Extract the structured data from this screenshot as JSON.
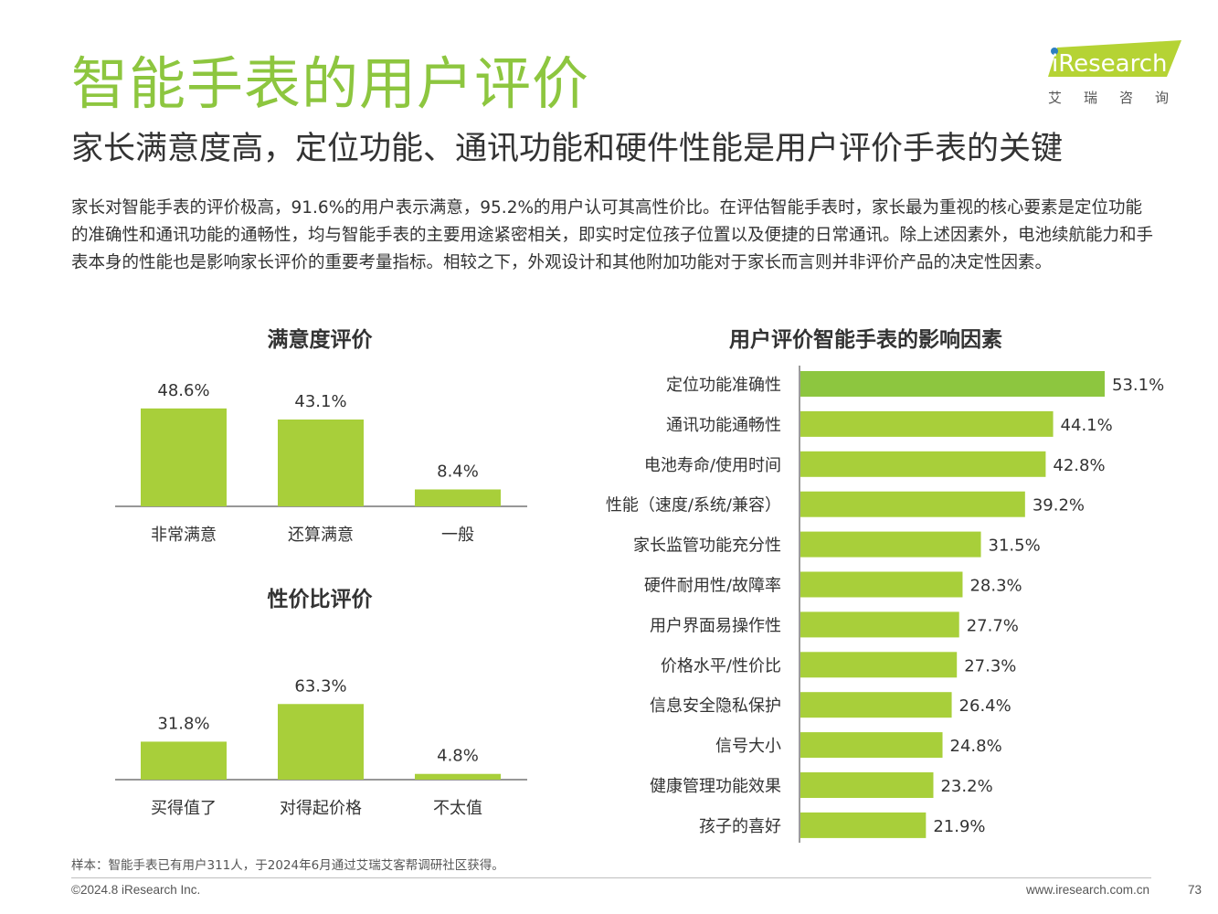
{
  "header": {
    "title": "智能手表的用户评价",
    "subtitle": "家长满意度高，定位功能、通讯功能和硬件性能是用户评价手表的关键",
    "body": "家长对智能手表的评价极高，91.6%的用户表示满意，95.2%的用户认可其高性价比。在评估智能手表时，家长最为重视的核心要素是定位功能的准确性和通讯功能的通畅性，均与智能手表的主要用途紧密相关，即实时定位孩子位置以及便捷的日常通讯。除上述因素外，电池续航能力和手表本身的性能也是影响家长评价的重要考量指标。相较之下，外观设计和其他附加功能对于家长而言则并非评价产品的决定性因素。"
  },
  "logo": {
    "brand": "iResearch",
    "cn": "艾瑞咨询"
  },
  "footer": {
    "note": "样本：智能手表已有用户311人，于2024年6月通过艾瑞艾客帮调研社区获得。",
    "copyright": "©2024.8 iResearch Inc.",
    "website": "www.iresearch.com.cn",
    "page": "73"
  },
  "colors": {
    "brand": "#8dc63f",
    "bar": "#a8cf3a",
    "bar_top": "#8dc63f",
    "axis": "#595959"
  },
  "chart_data": [
    {
      "type": "bar",
      "title": "满意度评价",
      "categories": [
        "非常满意",
        "还算满意",
        "一般"
      ],
      "values": [
        48.6,
        43.1,
        8.4
      ],
      "labels": [
        "48.6%",
        "43.1%",
        "8.4%"
      ],
      "unit": "%",
      "ylim": [
        0,
        70
      ]
    },
    {
      "type": "bar",
      "title": "性价比评价",
      "categories": [
        "买得值了",
        "对得起价格",
        "不太值"
      ],
      "values": [
        31.8,
        63.3,
        4.8
      ],
      "labels": [
        "31.8%",
        "63.3%",
        "4.8%"
      ],
      "unit": "%",
      "ylim": [
        0,
        70
      ]
    },
    {
      "type": "bar",
      "orientation": "horizontal",
      "title": "用户评价智能手表的影响因素",
      "categories": [
        "定位功能准确性",
        "通讯功能通畅性",
        "电池寿命/使用时间",
        "性能（速度/系统/兼容）",
        "家长监管功能充分性",
        "硬件耐用性/故障率",
        "用户界面易操作性",
        "价格水平/性价比",
        "信息安全隐私保护",
        "信号大小",
        "健康管理功能效果",
        "孩子的喜好"
      ],
      "values": [
        53.1,
        44.1,
        42.8,
        39.2,
        31.5,
        28.3,
        27.7,
        27.3,
        26.4,
        24.8,
        23.2,
        21.9
      ],
      "labels": [
        "53.1%",
        "44.1%",
        "42.8%",
        "39.2%",
        "31.5%",
        "28.3%",
        "27.7%",
        "27.3%",
        "26.4%",
        "24.8%",
        "23.2%",
        "21.9%"
      ],
      "unit": "%",
      "xlim": [
        0,
        53.1
      ]
    }
  ]
}
